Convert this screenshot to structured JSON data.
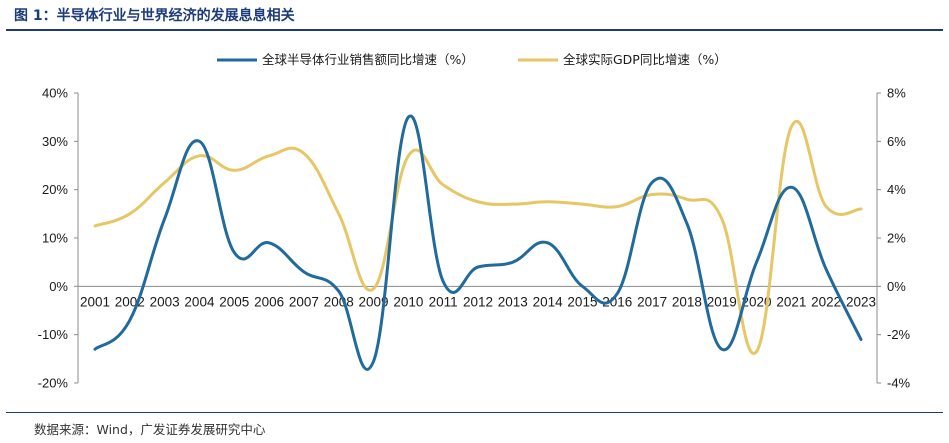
{
  "header": {
    "title": "图 1：半导体行业与世界经济的发展息息相关"
  },
  "footer": {
    "source": "数据来源：Wind，广发证券发展研究中心"
  },
  "colors": {
    "semi": "#216a9c",
    "gdp": "#e6c665",
    "accent": "#1d3b78"
  },
  "chart_data": {
    "type": "line",
    "title": "",
    "categories": [
      "2001",
      "2002",
      "2003",
      "2004",
      "2005",
      "2006",
      "2007",
      "2008",
      "2009",
      "2010",
      "2011",
      "2012",
      "2013",
      "2014",
      "2015",
      "2016",
      "2017",
      "2018",
      "2019",
      "2020",
      "2021",
      "2022",
      "2023"
    ],
    "series": [
      {
        "name": "全球半导体行业销售额同比增速（%）",
        "axis": "left",
        "values": [
          -13,
          -7,
          14,
          30,
          7,
          9,
          3,
          -1,
          -15.5,
          35,
          1,
          4,
          5,
          9,
          0,
          -1.5,
          21.5,
          13,
          -13,
          5,
          20.5,
          3.5,
          -11
        ]
      },
      {
        "name": "全球实际GDP同比增速（%）",
        "axis": "right",
        "values": [
          2.5,
          3.0,
          4.3,
          5.4,
          4.8,
          5.4,
          5.5,
          3.0,
          -0.1,
          5.4,
          4.2,
          3.5,
          3.4,
          3.5,
          3.4,
          3.3,
          3.8,
          3.6,
          2.8,
          -2.7,
          6.6,
          3.3,
          3.2
        ]
      }
    ],
    "y_left": {
      "min": -20,
      "max": 40,
      "step": 10,
      "ticks": [
        "-20%",
        "-10%",
        "0%",
        "10%",
        "20%",
        "30%",
        "40%"
      ]
    },
    "y_right": {
      "min": -4,
      "max": 8,
      "step": 2,
      "ticks": [
        "-4%",
        "-2%",
        "0%",
        "2%",
        "4%",
        "6%",
        "8%"
      ]
    },
    "grid": false,
    "legend_position": "top"
  }
}
